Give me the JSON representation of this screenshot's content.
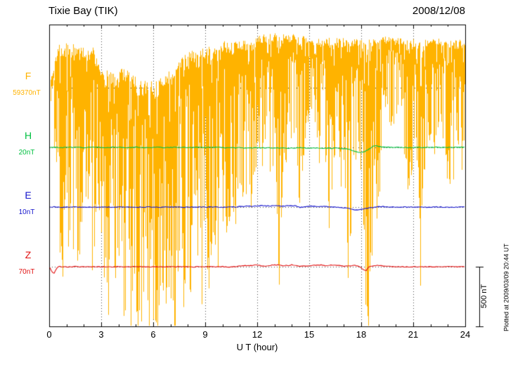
{
  "chart_data": {
    "type": "line",
    "title": "Tixie Bay (TIK)",
    "date_label": "2008/12/08",
    "xlabel": "U T (hour)",
    "x_range_hours": [
      0,
      24
    ],
    "x_ticks": [
      0,
      3,
      6,
      9,
      12,
      15,
      18,
      21,
      24
    ],
    "scale_bar": {
      "label": "500 nT",
      "nT": 500
    },
    "plotted_at": "Plotted at 2009/03/09 20:44 UT",
    "units_note": "series values are nT offsets from each trace baseline; vertical scale from 500 nT bar",
    "series": [
      {
        "name": "F",
        "baseline_value_label": "59370nT",
        "color": "#FFB300",
        "kind": "noise_envelope",
        "x_step_hours": 0.25,
        "envelope_hi_lo_nT": [
          [
            30,
            -30
          ],
          [
            170,
            -345
          ],
          [
            345,
            -860
          ],
          [
            400,
            -1435
          ],
          [
            375,
            -1435
          ],
          [
            345,
            -1035
          ],
          [
            375,
            -1610
          ],
          [
            345,
            -1265
          ],
          [
            345,
            -860
          ],
          [
            315,
            -1035
          ],
          [
            345,
            -1495
          ],
          [
            230,
            -920
          ],
          [
            170,
            -1150
          ],
          [
            145,
            -1895
          ],
          [
            170,
            -1610
          ],
          [
            115,
            -1435
          ],
          [
            145,
            -1725
          ],
          [
            170,
            -1925
          ],
          [
            145,
            -1610
          ],
          [
            115,
            -1840
          ],
          [
            85,
            -1725
          ],
          [
            60,
            -1895
          ],
          [
            85,
            -1955
          ],
          [
            60,
            -1840
          ],
          [
            60,
            -1955
          ],
          [
            85,
            -1925
          ],
          [
            115,
            -1725
          ],
          [
            145,
            -1895
          ],
          [
            170,
            -1840
          ],
          [
            200,
            -1955
          ],
          [
            230,
            -1725
          ],
          [
            260,
            -1895
          ],
          [
            290,
            -1610
          ],
          [
            315,
            -1840
          ],
          [
            290,
            -1435
          ],
          [
            315,
            -1725
          ],
          [
            345,
            -1265
          ],
          [
            345,
            -1810
          ],
          [
            375,
            -1150
          ],
          [
            345,
            -1435
          ],
          [
            375,
            -1035
          ],
          [
            400,
            -1265
          ],
          [
            375,
            -920
          ],
          [
            400,
            -1150
          ],
          [
            400,
            -805
          ],
          [
            415,
            -1035
          ],
          [
            400,
            -690
          ],
          [
            390,
            -1755
          ],
          [
            430,
            -460
          ],
          [
            450,
            -690
          ],
          [
            430,
            -345
          ],
          [
            450,
            -860
          ],
          [
            460,
            -345
          ],
          [
            430,
            -1695
          ],
          [
            450,
            -460
          ],
          [
            430,
            -690
          ],
          [
            450,
            -290
          ],
          [
            430,
            -515
          ],
          [
            415,
            -1180
          ],
          [
            430,
            -345
          ],
          [
            400,
            -230
          ],
          [
            375,
            -115
          ],
          [
            400,
            -515
          ],
          [
            415,
            -745
          ],
          [
            430,
            -575
          ],
          [
            400,
            -1810
          ],
          [
            415,
            -515
          ],
          [
            400,
            -690
          ],
          [
            415,
            -575
          ],
          [
            390,
            -1755
          ],
          [
            400,
            -745
          ],
          [
            415,
            -630
          ],
          [
            400,
            -515
          ],
          [
            375,
            -1895
          ],
          [
            400,
            -1925
          ],
          [
            415,
            -575
          ],
          [
            400,
            -1005
          ],
          [
            415,
            -460
          ],
          [
            430,
            -345
          ],
          [
            415,
            -290
          ],
          [
            400,
            -345
          ],
          [
            415,
            -230
          ],
          [
            400,
            -460
          ],
          [
            390,
            -1235
          ],
          [
            400,
            -345
          ],
          [
            375,
            -690
          ],
          [
            390,
            -1755
          ],
          [
            400,
            -515
          ],
          [
            415,
            -345
          ],
          [
            400,
            -575
          ],
          [
            415,
            -290
          ],
          [
            400,
            -460
          ],
          [
            390,
            -690
          ],
          [
            400,
            -775
          ],
          [
            390,
            -575
          ],
          [
            400,
            -690
          ],
          [
            375,
            -345
          ]
        ]
      },
      {
        "name": "H",
        "baseline_value_label": "20nT",
        "color": "#00C040",
        "kind": "line",
        "x_step_hours": 0.25,
        "values_nT": [
          0,
          1,
          0,
          -1,
          0,
          1,
          0,
          0,
          -1,
          0,
          1,
          0,
          0,
          -1,
          0,
          1,
          0,
          -1,
          0,
          0,
          1,
          0,
          -1,
          0,
          0,
          1,
          0,
          -1,
          0,
          1,
          0,
          0,
          -1,
          0,
          1,
          0,
          -1,
          0,
          0,
          1,
          -1,
          -3,
          -2,
          -4,
          -2,
          -4,
          -3,
          -5,
          -2,
          -4,
          -5,
          -3,
          -3,
          -5,
          -4,
          -6,
          -5,
          -4,
          -3,
          -5,
          -5,
          -4,
          -4,
          -6,
          -5,
          -7,
          -6,
          -8,
          -8,
          -12,
          -25,
          -40,
          -45,
          -30,
          -8,
          15,
          8,
          3,
          1,
          0,
          0,
          1,
          0,
          -1,
          0,
          1,
          0,
          0,
          -1,
          0,
          1,
          0,
          0,
          -1,
          0,
          1,
          0
        ]
      },
      {
        "name": "E",
        "baseline_value_label": "10nT",
        "color": "#1414CC",
        "kind": "line",
        "x_step_hours": 0.25,
        "values_nT": [
          0,
          1,
          0,
          -1,
          0,
          1,
          0,
          -1,
          0,
          0,
          1,
          0,
          -1,
          0,
          0,
          1,
          0,
          -1,
          0,
          1,
          0,
          -1,
          0,
          0,
          1,
          0,
          -1,
          0,
          1,
          0,
          0,
          -1,
          0,
          1,
          0,
          -1,
          0,
          0,
          1,
          0,
          -1,
          0,
          1,
          0,
          4,
          6,
          8,
          6,
          10,
          12,
          10,
          8,
          12,
          10,
          8,
          10,
          12,
          8,
          -4,
          2,
          8,
          6,
          4,
          6,
          4,
          2,
          0,
          -4,
          -6,
          -10,
          -18,
          -24,
          -20,
          -12,
          -6,
          -2,
          2,
          4,
          2,
          0,
          0,
          1,
          0,
          -1,
          0,
          1,
          0,
          -1,
          0,
          0,
          1,
          0,
          -1,
          0,
          0,
          1,
          0
        ]
      },
      {
        "name": "Z",
        "baseline_value_label": "70nT",
        "color": "#E01010",
        "kind": "line",
        "x_step_hours": 0.25,
        "values_nT": [
          0,
          -60,
          1,
          0,
          -1,
          0,
          1,
          0,
          0,
          -1,
          0,
          1,
          0,
          0,
          -1,
          0,
          1,
          0,
          -1,
          0,
          0,
          1,
          0,
          -1,
          0,
          0,
          1,
          0,
          -1,
          0,
          1,
          0,
          0,
          -1,
          0,
          1,
          0,
          0,
          -1,
          0,
          1,
          0,
          -1,
          0,
          5,
          10,
          8,
          12,
          15,
          8,
          5,
          10,
          17,
          12,
          8,
          10,
          15,
          8,
          5,
          8,
          5,
          10,
          17,
          12,
          8,
          12,
          15,
          8,
          3,
          5,
          12,
          8,
          -8,
          -35,
          5,
          10,
          12,
          8,
          3,
          0,
          1,
          0,
          -1,
          0,
          1,
          0,
          0,
          -1,
          0,
          1,
          0,
          -1,
          0,
          0,
          1,
          0,
          0
        ]
      }
    ]
  }
}
